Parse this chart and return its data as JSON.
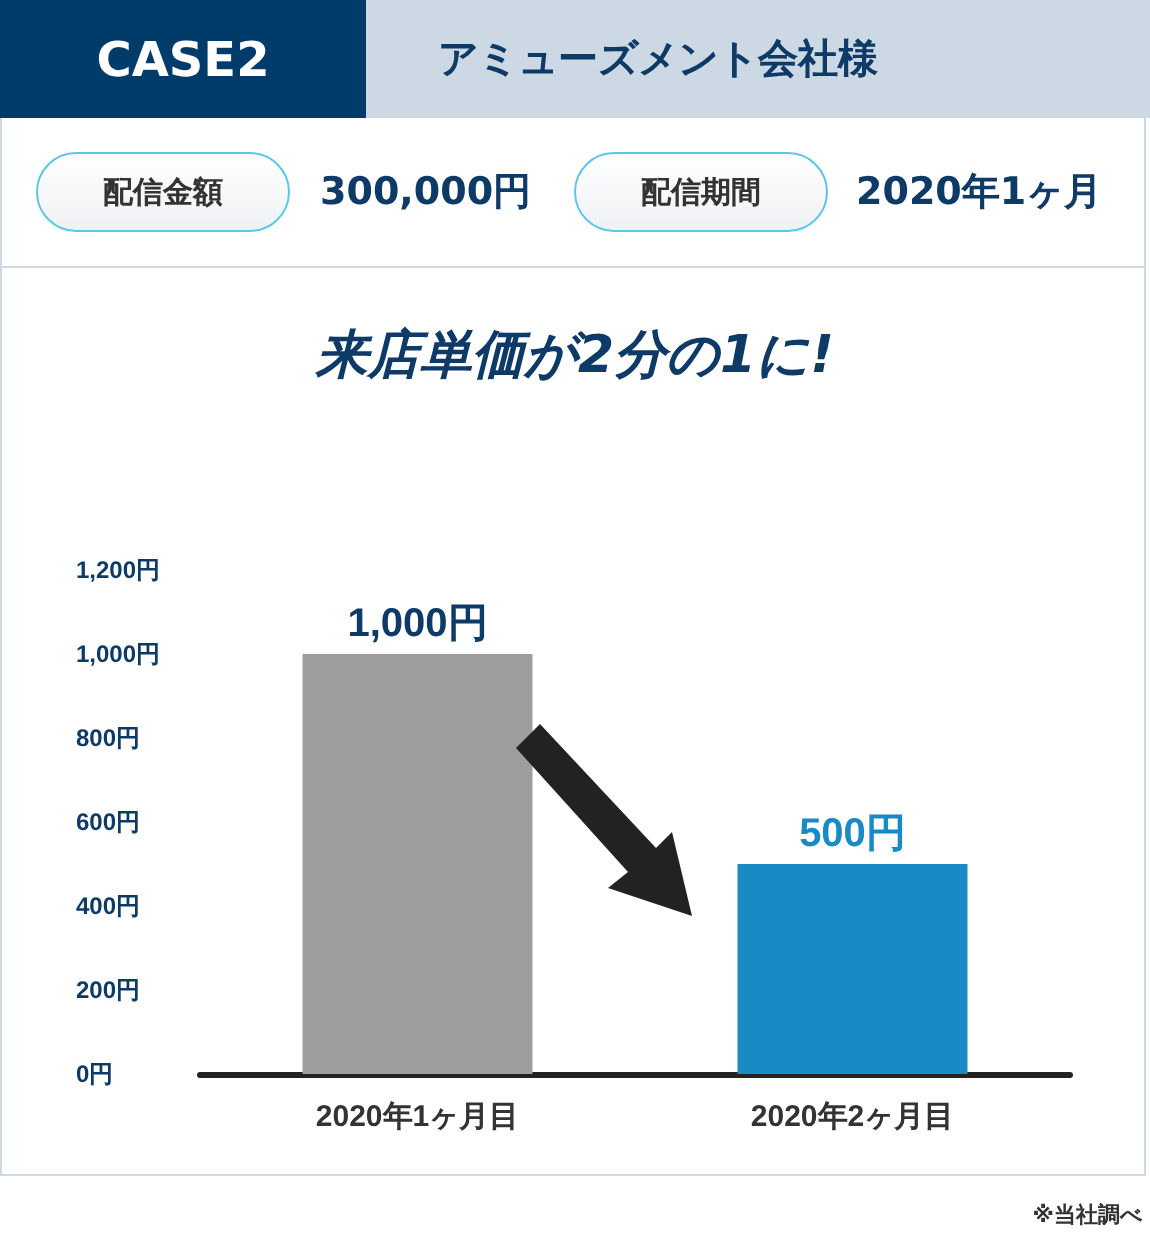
{
  "chart_data": {
    "type": "bar",
    "title": "来店単価が2分の1に!",
    "categories": [
      "2020年1ヶ月目",
      "2020年2ヶ月目"
    ],
    "values": [
      1000,
      500
    ],
    "colors": [
      "#9e9e9e",
      "#1a8ac4"
    ],
    "value_labels": [
      "1,000円",
      "500円"
    ],
    "ylim": [
      0,
      1200
    ],
    "yticks": [
      {
        "value": 0,
        "label": "0円"
      },
      {
        "value": 200,
        "label": "200円"
      },
      {
        "value": 400,
        "label": "400円"
      },
      {
        "value": 600,
        "label": "600円"
      },
      {
        "value": 800,
        "label": "800円"
      },
      {
        "value": 1000,
        "label": "1,000円"
      },
      {
        "value": 1200,
        "label": "1,200円"
      }
    ],
    "annotations": [
      "CASE2",
      "アミューズメント会社様",
      "配信金額",
      "300,000円",
      "配信期間",
      "2020年1ヶ月",
      "※当社調べ"
    ]
  }
}
